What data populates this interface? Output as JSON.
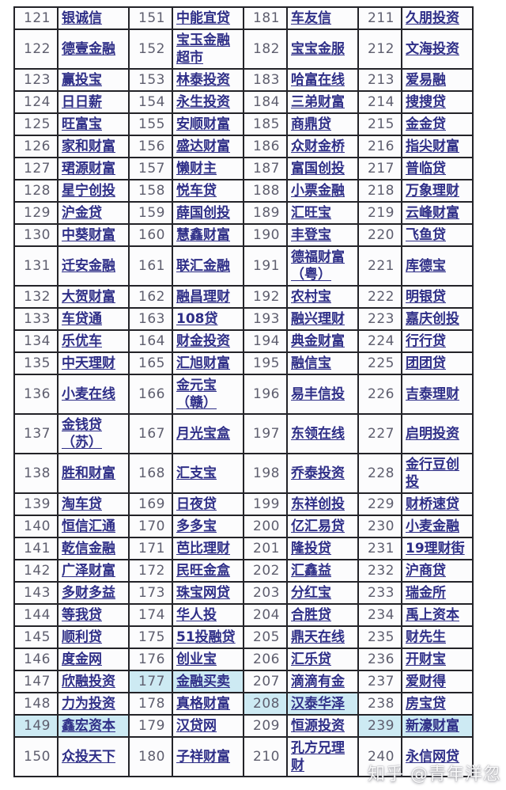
{
  "colors": {
    "link": "#2e2e87",
    "number": "#5e5e6e",
    "highlight": "#cdeaf3",
    "border": "#232328"
  },
  "watermark": {
    "text": "知乎 @青年洋忽"
  },
  "table": {
    "rows": [
      [
        {
          "num": "121",
          "name": "银诚信",
          "hl": false
        },
        {
          "num": "151",
          "name": "中能宜贷",
          "hl": false
        },
        {
          "num": "181",
          "name": "车友信",
          "hl": false
        },
        {
          "num": "211",
          "name": "久朋投资",
          "hl": false
        }
      ],
      [
        {
          "num": "122",
          "name": "德壹金融",
          "hl": false
        },
        {
          "num": "152",
          "name": "宝玉金融超市",
          "hl": false
        },
        {
          "num": "182",
          "name": "宝宝金服",
          "hl": false
        },
        {
          "num": "212",
          "name": "文海投资",
          "hl": false
        }
      ],
      [
        {
          "num": "123",
          "name": "赢投宝",
          "hl": false
        },
        {
          "num": "153",
          "name": "林泰投资",
          "hl": false
        },
        {
          "num": "183",
          "name": "哈富在线",
          "hl": false
        },
        {
          "num": "213",
          "name": "爱易融",
          "hl": false
        }
      ],
      [
        {
          "num": "124",
          "name": "日日薪",
          "hl": false
        },
        {
          "num": "154",
          "name": "永生投资",
          "hl": false
        },
        {
          "num": "184",
          "name": "三弟财富",
          "hl": false
        },
        {
          "num": "214",
          "name": "搜搜贷",
          "hl": false
        }
      ],
      [
        {
          "num": "125",
          "name": "旺富宝",
          "hl": false
        },
        {
          "num": "155",
          "name": "安顺财富",
          "hl": false
        },
        {
          "num": "185",
          "name": "商鼎贷",
          "hl": false
        },
        {
          "num": "215",
          "name": "金金贷",
          "hl": false
        }
      ],
      [
        {
          "num": "126",
          "name": "家和财富",
          "hl": false
        },
        {
          "num": "156",
          "name": "盛达财富",
          "hl": false
        },
        {
          "num": "186",
          "name": "众财金桥",
          "hl": false
        },
        {
          "num": "216",
          "name": "指尖财富",
          "hl": false
        }
      ],
      [
        {
          "num": "127",
          "name": "珺源财富",
          "hl": false
        },
        {
          "num": "157",
          "name": "懒财主",
          "hl": false
        },
        {
          "num": "187",
          "name": "富国创投",
          "hl": false
        },
        {
          "num": "217",
          "name": "普临贷",
          "hl": false
        }
      ],
      [
        {
          "num": "128",
          "name": "星宁创投",
          "hl": false
        },
        {
          "num": "158",
          "name": "悦车贷",
          "hl": false
        },
        {
          "num": "188",
          "name": "小票金融",
          "hl": false
        },
        {
          "num": "218",
          "name": "万象理财",
          "hl": false
        }
      ],
      [
        {
          "num": "129",
          "name": "沪金贷",
          "hl": false
        },
        {
          "num": "159",
          "name": "薛国创投",
          "hl": false
        },
        {
          "num": "189",
          "name": "汇旺宝",
          "hl": false
        },
        {
          "num": "219",
          "name": "云峰财富",
          "hl": false
        }
      ],
      [
        {
          "num": "130",
          "name": "中葵财富",
          "hl": false
        },
        {
          "num": "160",
          "name": "慧鑫财富",
          "hl": false
        },
        {
          "num": "190",
          "name": "丰登宝",
          "hl": false
        },
        {
          "num": "220",
          "name": "飞鱼贷",
          "hl": false
        }
      ],
      [
        {
          "num": "131",
          "name": "迁安金融",
          "hl": false
        },
        {
          "num": "161",
          "name": "联汇金融",
          "hl": false
        },
        {
          "num": "191",
          "name": "德福财富（粤）",
          "hl": false
        },
        {
          "num": "221",
          "name": "库德宝",
          "hl": false
        }
      ],
      [
        {
          "num": "132",
          "name": "大贺财富",
          "hl": false
        },
        {
          "num": "162",
          "name": "融昌理财",
          "hl": false
        },
        {
          "num": "192",
          "name": "农村宝",
          "hl": false
        },
        {
          "num": "222",
          "name": "明银贷",
          "hl": false
        }
      ],
      [
        {
          "num": "133",
          "name": "车贷通",
          "hl": false
        },
        {
          "num": "163",
          "name": "108贷",
          "hl": false
        },
        {
          "num": "193",
          "name": "融兴理财",
          "hl": false
        },
        {
          "num": "223",
          "name": "嘉庆创投",
          "hl": false
        }
      ],
      [
        {
          "num": "134",
          "name": "乐优车",
          "hl": false
        },
        {
          "num": "164",
          "name": "财金投资",
          "hl": false
        },
        {
          "num": "194",
          "name": "典金财富",
          "hl": false
        },
        {
          "num": "224",
          "name": "行行贷",
          "hl": false
        }
      ],
      [
        {
          "num": "135",
          "name": "中天理财",
          "hl": false
        },
        {
          "num": "165",
          "name": "汇旭财富",
          "hl": false
        },
        {
          "num": "195",
          "name": "融信宝",
          "hl": false
        },
        {
          "num": "225",
          "name": "团团贷",
          "hl": false
        }
      ],
      [
        {
          "num": "136",
          "name": "小麦在线",
          "hl": false
        },
        {
          "num": "166",
          "name": "金元宝（赣）",
          "hl": false
        },
        {
          "num": "196",
          "name": "易丰信投",
          "hl": false
        },
        {
          "num": "226",
          "name": "吉泰理财",
          "hl": false
        }
      ],
      [
        {
          "num": "137",
          "name": "金钱贷（苏）",
          "hl": false
        },
        {
          "num": "167",
          "name": "月光宝盒",
          "hl": false
        },
        {
          "num": "197",
          "name": "东领在线",
          "hl": false
        },
        {
          "num": "227",
          "name": "启明投资",
          "hl": false
        }
      ],
      [
        {
          "num": "138",
          "name": "胜和财富",
          "hl": false
        },
        {
          "num": "168",
          "name": "汇支宝",
          "hl": false
        },
        {
          "num": "198",
          "name": "乔泰投资",
          "hl": false
        },
        {
          "num": "228",
          "name": "金行豆创投",
          "hl": false
        }
      ],
      [
        {
          "num": "139",
          "name": "淘车贷",
          "hl": false
        },
        {
          "num": "169",
          "name": "日夜贷",
          "hl": false
        },
        {
          "num": "199",
          "name": "东祥创投",
          "hl": false
        },
        {
          "num": "229",
          "name": "财桥速贷",
          "hl": false
        }
      ],
      [
        {
          "num": "140",
          "name": "恒信汇通",
          "hl": false
        },
        {
          "num": "170",
          "name": "多多宝",
          "hl": false
        },
        {
          "num": "200",
          "name": "亿汇易贷",
          "hl": false
        },
        {
          "num": "230",
          "name": "小麦金融",
          "hl": false
        }
      ],
      [
        {
          "num": "141",
          "name": "乾信金融",
          "hl": false
        },
        {
          "num": "171",
          "name": "芭比理财",
          "hl": false
        },
        {
          "num": "201",
          "name": "隆投贷",
          "hl": false
        },
        {
          "num": "231",
          "name": "19理财街",
          "hl": false
        }
      ],
      [
        {
          "num": "142",
          "name": "广泽财富",
          "hl": false
        },
        {
          "num": "172",
          "name": "民旺金盒",
          "hl": false
        },
        {
          "num": "202",
          "name": "汇鑫益",
          "hl": false
        },
        {
          "num": "232",
          "name": "沪商贷",
          "hl": false
        }
      ],
      [
        {
          "num": "143",
          "name": "多财多益",
          "hl": false
        },
        {
          "num": "173",
          "name": "珠宝网贷",
          "hl": false
        },
        {
          "num": "203",
          "name": "分红宝",
          "hl": false
        },
        {
          "num": "233",
          "name": "瑞金所",
          "hl": false
        }
      ],
      [
        {
          "num": "144",
          "name": "等我贷",
          "hl": false
        },
        {
          "num": "174",
          "name": "华人投",
          "hl": false
        },
        {
          "num": "204",
          "name": "合胜贷",
          "hl": false
        },
        {
          "num": "234",
          "name": "禹上资本",
          "hl": false
        }
      ],
      [
        {
          "num": "145",
          "name": "顺利贷",
          "hl": false
        },
        {
          "num": "175",
          "name": "51投融贷",
          "hl": false
        },
        {
          "num": "205",
          "name": "鼎天在线",
          "hl": false
        },
        {
          "num": "235",
          "name": "财先生",
          "hl": false
        }
      ],
      [
        {
          "num": "146",
          "name": "度金网",
          "hl": false
        },
        {
          "num": "176",
          "name": "创业宝",
          "hl": false
        },
        {
          "num": "206",
          "name": "汇乐贷",
          "hl": false
        },
        {
          "num": "236",
          "name": "开财宝",
          "hl": false
        }
      ],
      [
        {
          "num": "147",
          "name": "欣融投资",
          "hl": false
        },
        {
          "num": "177",
          "name": "金融买卖",
          "hl": true
        },
        {
          "num": "207",
          "name": "滴滴有金",
          "hl": false
        },
        {
          "num": "237",
          "name": "爱财得",
          "hl": false
        }
      ],
      [
        {
          "num": "148",
          "name": "力为投资",
          "hl": false
        },
        {
          "num": "178",
          "name": "真格财富",
          "hl": false
        },
        {
          "num": "208",
          "name": "汉泰华泽",
          "hl": true
        },
        {
          "num": "238",
          "name": "房宝贷",
          "hl": false
        }
      ],
      [
        {
          "num": "149",
          "name": "鑫宏资本",
          "hl": true
        },
        {
          "num": "179",
          "name": "汉贷网",
          "hl": false
        },
        {
          "num": "209",
          "name": "恒源投资",
          "hl": false
        },
        {
          "num": "239",
          "name": "新濠财富",
          "hl": true
        }
      ],
      [
        {
          "num": "150",
          "name": "众投天下",
          "hl": false
        },
        {
          "num": "180",
          "name": "子祥财富",
          "hl": false
        },
        {
          "num": "210",
          "name": "孔方兄理财",
          "hl": false
        },
        {
          "num": "240",
          "name": "永信网贷",
          "hl": false
        }
      ]
    ]
  }
}
